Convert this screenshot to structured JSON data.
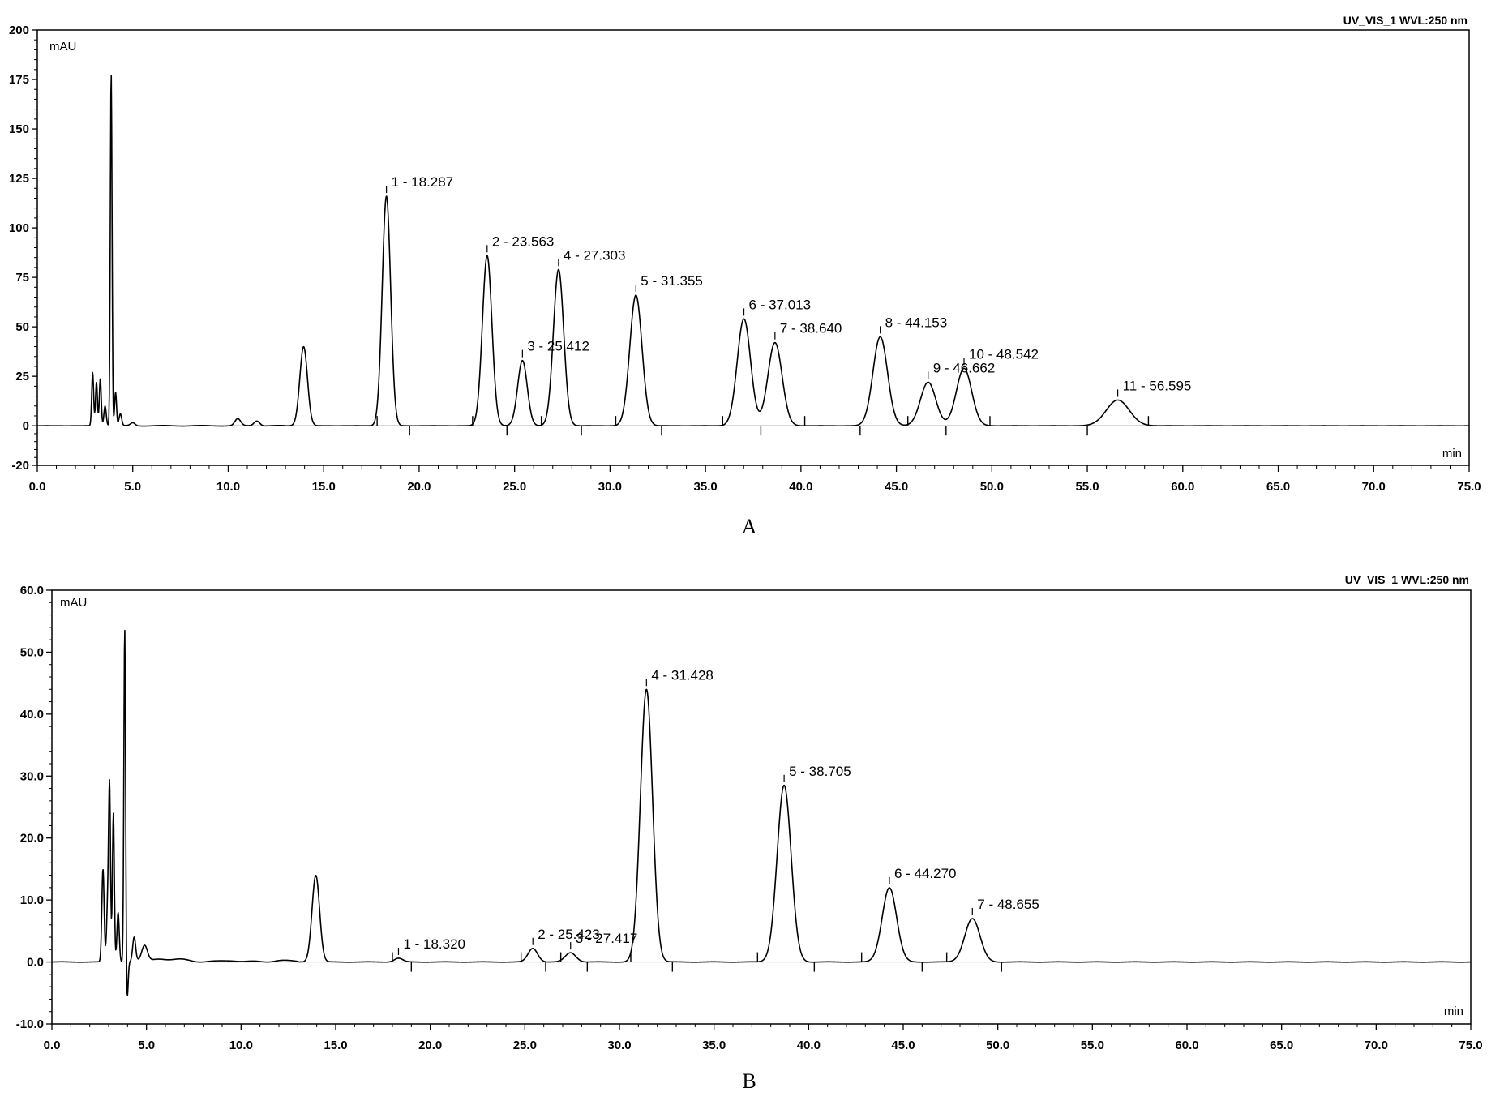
{
  "chart_data": [
    {
      "type": "line",
      "panel_label": "A",
      "detector_label": "UV_VIS_1 WVL:250 nm",
      "ylabel": "mAU",
      "xlabel": "min",
      "xlim": [
        0,
        75
      ],
      "ylim": [
        -20,
        200
      ],
      "x_ticks": [
        "0.0",
        "5.0",
        "10.0",
        "15.0",
        "20.0",
        "25.0",
        "30.0",
        "35.0",
        "40.0",
        "45.0",
        "50.0",
        "55.0",
        "60.0",
        "65.0",
        "70.0",
        "75.0"
      ],
      "y_ticks": [
        "-20",
        "0",
        "25",
        "50",
        "75",
        "100",
        "125",
        "150",
        "175",
        "200"
      ],
      "y_tick_values": [
        -20,
        0,
        25,
        50,
        75,
        100,
        125,
        150,
        175,
        200
      ],
      "unlabeled_peaks": [
        {
          "rt": 2.9,
          "height": 27,
          "width": 0.05
        },
        {
          "rt": 3.1,
          "height": 22,
          "width": 0.05
        },
        {
          "rt": 3.3,
          "height": 24,
          "width": 0.05
        },
        {
          "rt": 3.55,
          "height": 10,
          "width": 0.06
        },
        {
          "rt": 3.87,
          "height": 178,
          "width": 0.045
        },
        {
          "rt": 4.1,
          "height": 17,
          "width": 0.05
        },
        {
          "rt": 4.35,
          "height": 6,
          "width": 0.07
        },
        {
          "rt": 5.0,
          "height": 1.5,
          "width": 0.12
        },
        {
          "rt": 10.5,
          "height": 3.5,
          "width": 0.15
        },
        {
          "rt": 11.5,
          "height": 2.5,
          "width": 0.15
        },
        {
          "rt": 13.95,
          "height": 40,
          "width": 0.2
        }
      ],
      "labeled_peaks": [
        {
          "number": 1,
          "rt": 18.287,
          "height": 116,
          "width": 0.22,
          "label": "1 - 18.287"
        },
        {
          "number": 2,
          "rt": 23.563,
          "height": 86,
          "width": 0.25,
          "label": "2 - 23.563"
        },
        {
          "number": 3,
          "rt": 25.412,
          "height": 33,
          "width": 0.25,
          "label": "3 - 25.412"
        },
        {
          "number": 4,
          "rt": 27.303,
          "height": 79,
          "width": 0.27,
          "label": "4 - 27.303"
        },
        {
          "number": 5,
          "rt": 31.355,
          "height": 66,
          "width": 0.32,
          "label": "5 - 31.355"
        },
        {
          "number": 6,
          "rt": 37.013,
          "height": 54,
          "width": 0.35,
          "label": "6 - 37.013"
        },
        {
          "number": 7,
          "rt": 38.64,
          "height": 42,
          "width": 0.37,
          "label": "7 - 38.640"
        },
        {
          "number": 8,
          "rt": 44.153,
          "height": 45,
          "width": 0.38,
          "label": "8 - 44.153"
        },
        {
          "number": 9,
          "rt": 46.662,
          "height": 22,
          "width": 0.4,
          "label": "9 - 46.662"
        },
        {
          "number": 10,
          "rt": 48.542,
          "height": 29,
          "width": 0.4,
          "label": "10 - 48.542"
        },
        {
          "number": 11,
          "rt": 56.595,
          "height": 13,
          "width": 0.6,
          "label": "11 - 56.595"
        }
      ],
      "integration_marks": [
        17.8,
        19.5,
        22.8,
        24.6,
        26.4,
        28.5,
        30.3,
        32.7,
        35.9,
        37.9,
        40.2,
        43.1,
        45.6,
        47.6,
        49.9,
        55.0,
        58.2
      ]
    },
    {
      "type": "line",
      "panel_label": "B",
      "detector_label": "UV_VIS_1 WVL:250 nm",
      "ylabel": "mAU",
      "xlabel": "min",
      "xlim": [
        0,
        75
      ],
      "ylim": [
        -10,
        60
      ],
      "x_ticks": [
        "0.0",
        "5.0",
        "10.0",
        "15.0",
        "20.0",
        "25.0",
        "30.0",
        "35.0",
        "40.0",
        "45.0",
        "50.0",
        "55.0",
        "60.0",
        "65.0",
        "70.0",
        "75.0"
      ],
      "y_ticks": [
        "-10.0",
        "0.0",
        "10.0",
        "20.0",
        "30.0",
        "40.0",
        "50.0",
        "60.0"
      ],
      "y_tick_values": [
        -10,
        0,
        10,
        20,
        30,
        40,
        50,
        60
      ],
      "unlabeled_peaks": [
        {
          "rt": 2.7,
          "height": 15,
          "width": 0.06
        },
        {
          "rt": 2.95,
          "height": 9,
          "width": 0.06
        },
        {
          "rt": 3.05,
          "height": 27,
          "width": 0.05
        },
        {
          "rt": 3.25,
          "height": 24,
          "width": 0.05
        },
        {
          "rt": 3.5,
          "height": 8,
          "width": 0.06
        },
        {
          "rt": 3.85,
          "height": 54,
          "width": 0.045
        },
        {
          "rt": 3.98,
          "height": -6,
          "width": 0.05
        },
        {
          "rt": 4.35,
          "height": 4,
          "width": 0.08
        },
        {
          "rt": 4.9,
          "height": 2.5,
          "width": 0.15
        },
        {
          "rt": 5.6,
          "height": 0.6,
          "width": 0.4
        },
        {
          "rt": 7.0,
          "height": 0.4,
          "width": 0.5
        },
        {
          "rt": 9.5,
          "height": 0.3,
          "width": 0.4
        },
        {
          "rt": 12.0,
          "height": 0.3,
          "width": 0.4
        },
        {
          "rt": 13.95,
          "height": 14,
          "width": 0.2
        }
      ],
      "labeled_peaks": [
        {
          "number": 1,
          "rt": 18.32,
          "height": 0.6,
          "width": 0.22,
          "label": "1 - 18.320"
        },
        {
          "number": 2,
          "rt": 25.423,
          "height": 2.2,
          "width": 0.25,
          "label": "2 - 25.423"
        },
        {
          "number": 3,
          "rt": 27.417,
          "height": 1.5,
          "width": 0.28,
          "label": "3 - 27.417"
        },
        {
          "number": 4,
          "rt": 31.428,
          "height": 44,
          "width": 0.32,
          "label": "4 - 31.428"
        },
        {
          "number": 5,
          "rt": 38.705,
          "height": 28.5,
          "width": 0.37,
          "label": "5 - 38.705"
        },
        {
          "number": 6,
          "rt": 44.27,
          "height": 12,
          "width": 0.38,
          "label": "6 - 44.270"
        },
        {
          "number": 7,
          "rt": 48.655,
          "height": 7,
          "width": 0.4,
          "label": "7 - 48.655"
        }
      ],
      "integration_marks": [
        18.0,
        19.0,
        24.8,
        26.1,
        26.9,
        28.3,
        30.6,
        32.8,
        37.3,
        40.3,
        42.8,
        46.0,
        47.3,
        50.2
      ]
    }
  ]
}
